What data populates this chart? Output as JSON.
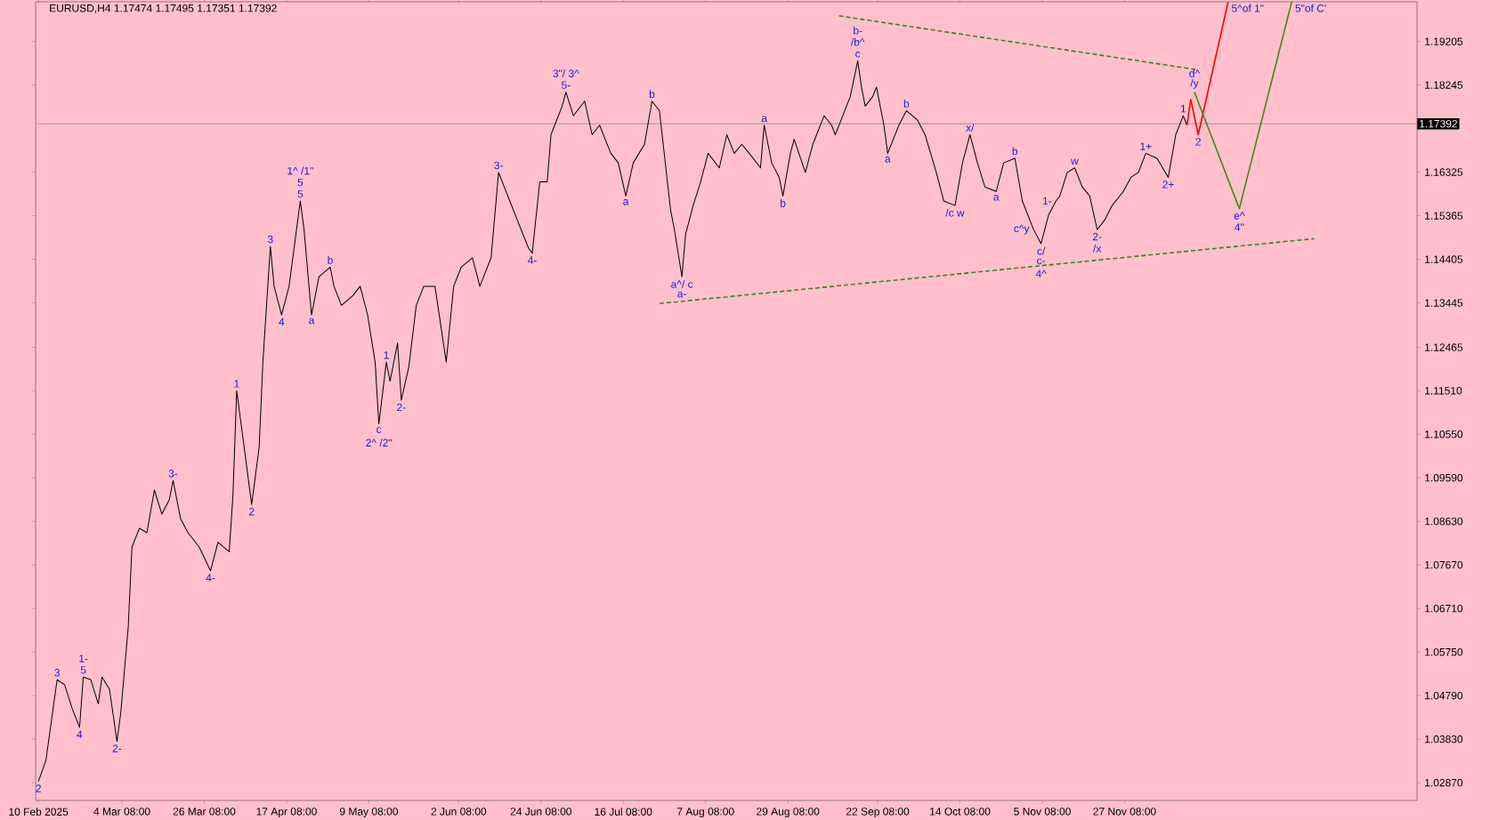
{
  "chart_data": {
    "type": "line",
    "title": "EURUSD,H4  1.17474 1.17495 1.17351 1.17392",
    "xlim": [
      "2025-02-09T06:00",
      "2026-02-13T12:00"
    ],
    "ylim": [
      1.0248,
      1.2008
    ],
    "xticks": [
      {
        "value": "2025-02-10",
        "label": "10 Feb 2025"
      },
      {
        "value": "2025-03-04T08:00",
        "label": "4 Mar 08:00"
      },
      {
        "value": "2025-03-26T08:00",
        "label": "26 Mar 08:00"
      },
      {
        "value": "2025-04-17T08:00",
        "label": "17 Apr 08:00"
      },
      {
        "value": "2025-05-09T08:00",
        "label": "9 May 08:00"
      },
      {
        "value": "2025-06-02T08:00",
        "label": "2 Jun 08:00"
      },
      {
        "value": "2025-06-24T08:00",
        "label": "24 Jun 08:00"
      },
      {
        "value": "2025-07-16T08:00",
        "label": "16 Jul 08:00"
      },
      {
        "value": "2025-08-07T08:00",
        "label": "7 Aug 08:00"
      },
      {
        "value": "2025-08-29T08:00",
        "label": "29 Aug 08:00"
      },
      {
        "value": "2025-09-22T08:00",
        "label": "22 Sep 08:00"
      },
      {
        "value": "2025-10-14T08:00",
        "label": "14 Oct 08:00"
      },
      {
        "value": "2025-11-05T08:00",
        "label": "5 Nov 08:00"
      },
      {
        "value": "2025-11-27T08:00",
        "label": "27 Nov 08:00"
      }
    ],
    "yticks": [
      {
        "value": 1.0287,
        "label": "1.02870"
      },
      {
        "value": 1.0383,
        "label": "1.03830"
      },
      {
        "value": 1.0479,
        "label": "1.04790"
      },
      {
        "value": 1.0575,
        "label": "1.05750"
      },
      {
        "value": 1.0671,
        "label": "1.06710"
      },
      {
        "value": 1.0767,
        "label": "1.07670"
      },
      {
        "value": 1.0863,
        "label": "1.08630"
      },
      {
        "value": 1.0959,
        "label": "1.09590"
      },
      {
        "value": 1.1055,
        "label": "1.10550"
      },
      {
        "value": 1.1151,
        "label": "1.11510"
      },
      {
        "value": 1.12465,
        "label": "1.12465"
      },
      {
        "value": 1.13445,
        "label": "1.13445"
      },
      {
        "value": 1.14405,
        "label": "1.14405"
      },
      {
        "value": 1.15365,
        "label": "1.15365"
      },
      {
        "value": 1.16325,
        "label": "1.16325"
      },
      {
        "value": 1.18245,
        "label": "1.18245"
      },
      {
        "value": 1.19205,
        "label": "1.19205"
      }
    ],
    "ref_lines": [
      {
        "axis": "y",
        "value": 1.17392,
        "label": "1.17392",
        "color": "#8c8c8c"
      }
    ],
    "series": [
      {
        "color": "#000000",
        "x": [
          "2025-02-10",
          "2025-02-12",
          "2025-02-15",
          "2025-02-17",
          "2025-02-19",
          "2025-02-21",
          "2025-02-22",
          "2025-02-24",
          "2025-02-26",
          "2025-02-27",
          "2025-03-01",
          "2025-03-03",
          "2025-03-04",
          "2025-03-06",
          "2025-03-07",
          "2025-03-09",
          "2025-03-11",
          "2025-03-13",
          "2025-03-15",
          "2025-03-17",
          "2025-03-18",
          "2025-03-20",
          "2025-03-22",
          "2025-03-25",
          "2025-03-28",
          "2025-03-30",
          "2025-04-02",
          "2025-04-03",
          "2025-04-04",
          "2025-04-06",
          "2025-04-08",
          "2025-04-10",
          "2025-04-11",
          "2025-04-13",
          "2025-04-14",
          "2025-04-16",
          "2025-04-18",
          "2025-04-19",
          "2025-04-21",
          "2025-04-22",
          "2025-04-24",
          "2025-04-26",
          "2025-04-29",
          "2025-04-30",
          "2025-05-02",
          "2025-05-05",
          "2025-05-07",
          "2025-05-09",
          "2025-05-11",
          "2025-05-12",
          "2025-05-14",
          "2025-05-15",
          "2025-05-17",
          "2025-05-18",
          "2025-05-20",
          "2025-05-22",
          "2025-05-24",
          "2025-05-27",
          "2025-05-30",
          "2025-06-01",
          "2025-06-03",
          "2025-06-06",
          "2025-06-08",
          "2025-06-11",
          "2025-06-13",
          "2025-06-16",
          "2025-06-18",
          "2025-06-21",
          "2025-06-22",
          "2025-06-24",
          "2025-06-26",
          "2025-06-27",
          "2025-06-28",
          "2025-06-30",
          "2025-07-01",
          "2025-07-03",
          "2025-07-06",
          "2025-07-08",
          "2025-07-10",
          "2025-07-13",
          "2025-07-15",
          "2025-07-17",
          "2025-07-19",
          "2025-07-22",
          "2025-07-24",
          "2025-07-26",
          "2025-07-27",
          "2025-07-29",
          "2025-07-30",
          "2025-08-01",
          "2025-08-02",
          "2025-08-04",
          "2025-08-06",
          "2025-08-08",
          "2025-08-11",
          "2025-08-13",
          "2025-08-15",
          "2025-08-17",
          "2025-08-19",
          "2025-08-22",
          "2025-08-23",
          "2025-08-25",
          "2025-08-27",
          "2025-08-28",
          "2025-08-30",
          "2025-08-31",
          "2025-09-03",
          "2025-09-05",
          "2025-09-08",
          "2025-09-10",
          "2025-09-11",
          "2025-09-13",
          "2025-09-15",
          "2025-09-17",
          "2025-09-18",
          "2025-09-19",
          "2025-09-21",
          "2025-09-22",
          "2025-09-24",
          "2025-09-25",
          "2025-09-28",
          "2025-09-30",
          "2025-10-03",
          "2025-10-05",
          "2025-10-08",
          "2025-10-10",
          "2025-10-13",
          "2025-10-15",
          "2025-10-17",
          "2025-10-19",
          "2025-10-21",
          "2025-10-24",
          "2025-10-26",
          "2025-10-29",
          "2025-10-31",
          "2025-11-03",
          "2025-11-05",
          "2025-11-07",
          "2025-11-09",
          "2025-11-10",
          "2025-11-12",
          "2025-11-14",
          "2025-11-16",
          "2025-11-18",
          "2025-11-20",
          "2025-11-22",
          "2025-11-24",
          "2025-11-27",
          "2025-11-29",
          "2025-12-01",
          "2025-12-03",
          "2025-12-06",
          "2025-12-09",
          "2025-12-11",
          "2025-12-13",
          "2025-12-14"
        ],
        "values": [
          1.029,
          1.0336,
          1.0514,
          1.0503,
          1.0451,
          1.0409,
          1.052,
          1.0514,
          1.0461,
          1.052,
          1.0493,
          1.0378,
          1.044,
          1.0629,
          1.0806,
          1.0848,
          1.0838,
          1.0932,
          1.0879,
          1.0911,
          1.0953,
          1.0869,
          1.0838,
          1.0806,
          1.0754,
          1.0817,
          1.0796,
          1.0921,
          1.1151,
          1.1026,
          1.09,
          1.1026,
          1.1214,
          1.1469,
          1.1381,
          1.1318,
          1.1381,
          1.1444,
          1.1569,
          1.1506,
          1.1318,
          1.1402,
          1.1423,
          1.1381,
          1.1339,
          1.136,
          1.1381,
          1.1318,
          1.1214,
          1.1078,
          1.1214,
          1.1172,
          1.1256,
          1.113,
          1.1203,
          1.1339,
          1.1381,
          1.1381,
          1.1214,
          1.1381,
          1.1423,
          1.1444,
          1.1381,
          1.1444,
          1.1632,
          1.1569,
          1.1527,
          1.1465,
          1.1454,
          1.1611,
          1.1611,
          1.1715,
          1.1736,
          1.1778,
          1.1809,
          1.1757,
          1.1789,
          1.1715,
          1.1736,
          1.1674,
          1.1653,
          1.158,
          1.1653,
          1.1694,
          1.1789,
          1.1768,
          1.1694,
          1.1548,
          1.1506,
          1.1402,
          1.1496,
          1.1559,
          1.1611,
          1.1674,
          1.1642,
          1.1715,
          1.1674,
          1.1694,
          1.1674,
          1.1642,
          1.1736,
          1.1653,
          1.1621,
          1.158,
          1.1674,
          1.1705,
          1.1632,
          1.1694,
          1.1757,
          1.1736,
          1.1715,
          1.1757,
          1.1799,
          1.1878,
          1.182,
          1.1778,
          1.1799,
          1.182,
          1.1736,
          1.1674,
          1.1736,
          1.1768,
          1.1747,
          1.1715,
          1.1632,
          1.1569,
          1.1559,
          1.1653,
          1.1715,
          1.1653,
          1.16,
          1.159,
          1.1653,
          1.1663,
          1.1569,
          1.1506,
          1.1475,
          1.1538,
          1.1569,
          1.158,
          1.1632,
          1.1642,
          1.16,
          1.158,
          1.1506,
          1.1527,
          1.1559,
          1.159,
          1.1621,
          1.1632,
          1.1674,
          1.1663,
          1.1621,
          1.1715,
          1.1757,
          1.1736
        ]
      },
      {
        "color": "#2e8b1e",
        "line_style": "dashed",
        "x": [
          "2025-09-12",
          "2025-12-17"
        ],
        "values": [
          1.1977,
          1.1858
        ]
      },
      {
        "color": "#2e8b1e",
        "line_style": "dashed",
        "x": [
          "2025-07-26",
          "2026-01-17"
        ],
        "values": [
          1.1343,
          1.1486
        ]
      },
      {
        "color": "#ff0000",
        "x": [
          "2025-12-14",
          "2025-12-15",
          "2025-12-17",
          "2025-12-25"
        ],
        "values": [
          1.1736,
          1.1793,
          1.1715,
          1.2008
        ]
      },
      {
        "color": "#3d8b1a",
        "x": [
          "2025-12-16",
          "2025-12-28",
          "2026-01-11"
        ],
        "values": [
          1.1809,
          1.1552,
          1.2008
        ]
      }
    ],
    "annotations": [
      {
        "text": "2",
        "x": "2025-02-10",
        "y": 1.029
      },
      {
        "text": "3",
        "x": "2025-02-15",
        "y": 1.0514
      },
      {
        "text": "5",
        "x": "2025-02-22",
        "y": 1.052
      },
      {
        "text": "1-",
        "x": "2025-02-22",
        "y": 1.052
      },
      {
        "text": "4",
        "x": "2025-02-21",
        "y": 1.0409
      },
      {
        "text": "2-",
        "x": "2025-03-03",
        "y": 1.0378
      },
      {
        "text": "3-",
        "x": "2025-03-18",
        "y": 1.0953
      },
      {
        "text": "4-",
        "x": "2025-03-28",
        "y": 1.0754
      },
      {
        "text": "1",
        "x": "2025-04-04",
        "y": 1.1151
      },
      {
        "text": "2",
        "x": "2025-04-08",
        "y": 1.09
      },
      {
        "text": "3",
        "x": "2025-04-13",
        "y": 1.1469
      },
      {
        "text": "4",
        "x": "2025-04-16",
        "y": 1.1318
      },
      {
        "text": "5",
        "x": "2025-04-21",
        "y": 1.1569
      },
      {
        "text": "5",
        "x": "2025-04-21",
        "y": 1.1569
      },
      {
        "text": "1^ /1\"",
        "x": "2025-04-21",
        "y": 1.1569
      },
      {
        "text": "b",
        "x": "2025-04-29",
        "y": 1.1423
      },
      {
        "text": "a",
        "x": "2025-04-24",
        "y": 1.1318
      },
      {
        "text": "1",
        "x": "2025-05-14",
        "y": 1.1214
      },
      {
        "text": "2-",
        "x": "2025-05-18",
        "y": 1.113
      },
      {
        "text": "c",
        "x": "2025-05-12",
        "y": 1.1078
      },
      {
        "text": "2^ /2\"",
        "x": "2025-05-12",
        "y": 1.1078
      },
      {
        "text": "3-",
        "x": "2025-06-13",
        "y": 1.1632
      },
      {
        "text": "4-",
        "x": "2025-06-22",
        "y": 1.1454
      },
      {
        "text": "5-",
        "x": "2025-07-01",
        "y": 1.1809
      },
      {
        "text": "3\"/ 3^",
        "x": "2025-07-01",
        "y": 1.1809
      },
      {
        "text": "a",
        "x": "2025-07-17",
        "y": 1.158
      },
      {
        "text": "b",
        "x": "2025-07-24",
        "y": 1.1789
      },
      {
        "text": "a^/ c",
        "x": "2025-08-01",
        "y": 1.1402
      },
      {
        "text": "a-",
        "x": "2025-08-01",
        "y": 1.1402
      },
      {
        "text": "a",
        "x": "2025-08-23",
        "y": 1.1736
      },
      {
        "text": "b",
        "x": "2025-08-28",
        "y": 1.158
      },
      {
        "text": "c",
        "x": "2025-09-17",
        "y": 1.1878
      },
      {
        "text": "/b^",
        "x": "2025-09-17",
        "y": 1.1878
      },
      {
        "text": "b-",
        "x": "2025-09-17",
        "y": 1.1878
      },
      {
        "text": "a",
        "x": "2025-09-25",
        "y": 1.1674
      },
      {
        "text": "b",
        "x": "2025-09-30",
        "y": 1.1768
      },
      {
        "text": "x/",
        "x": "2025-10-17",
        "y": 1.1715
      },
      {
        "text": "/c w",
        "x": "2025-10-13",
        "y": 1.1559
      },
      {
        "text": "a",
        "x": "2025-10-24",
        "y": 1.159
      },
      {
        "text": "b",
        "x": "2025-10-29",
        "y": 1.1663
      },
      {
        "text": "1-",
        "x": "2025-11-09",
        "y": 1.1569
      },
      {
        "text": "w",
        "x": "2025-11-14",
        "y": 1.1642
      },
      {
        "text": "c/",
        "x": "2025-11-05",
        "y": 1.1475
      },
      {
        "text": "c-",
        "x": "2025-11-05",
        "y": 1.1475
      },
      {
        "text": "c^y",
        "x": "2025-11-03",
        "y": 1.1506
      },
      {
        "text": "4^",
        "x": "2025-11-05",
        "y": 1.1475
      },
      {
        "text": "2-",
        "x": "2025-11-20",
        "y": 1.1506
      },
      {
        "text": "/x",
        "x": "2025-11-20",
        "y": 1.1506
      },
      {
        "text": "1+",
        "x": "2025-12-03",
        "y": 1.1674
      },
      {
        "text": "2+",
        "x": "2025-12-09",
        "y": 1.1621
      },
      {
        "text": "1",
        "x": "2025-12-13",
        "y": 1.1757
      },
      {
        "text": "/y",
        "x": "2025-12-16",
        "y": 1.1809
      },
      {
        "text": "d^",
        "x": "2025-12-16",
        "y": 1.1809
      },
      {
        "text": "2",
        "x": "2025-12-17",
        "y": 1.1715
      },
      {
        "text": "e^",
        "x": "2025-12-28",
        "y": 1.1552
      },
      {
        "text": "4\"",
        "x": "2025-12-28",
        "y": 1.1552
      },
      {
        "text": "5^of 1\"",
        "x": "2025-12-25",
        "y": 1.2008
      },
      {
        "text": "5\"of C'",
        "x": "2026-01-11",
        "y": 1.2008
      }
    ]
  }
}
